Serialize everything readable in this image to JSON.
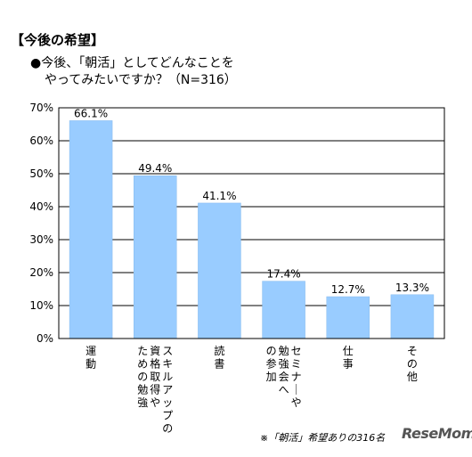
{
  "header": {
    "title": "【今後の希望】",
    "question_line1": "●今後、「朝活」としてどんなことを",
    "question_line2": "やってみたいですか？（N=316）"
  },
  "chart_data": {
    "type": "bar",
    "categories": [
      "運動",
      "資格取得やスキルアップのための勉強",
      "読書",
      "セミナーや勉強会への参加",
      "仕事",
      "その他"
    ],
    "category_lines": [
      [
        "運動"
      ],
      [
        "スキルアップの",
        "資格取得や",
        "ための勉強"
      ],
      [
        "読書"
      ],
      [
        "セミナーや",
        "勉強会へ",
        "の参加"
      ],
      [
        "仕事"
      ],
      [
        "その他"
      ]
    ],
    "values": [
      66.1,
      49.4,
      41.1,
      17.4,
      12.7,
      13.3
    ],
    "value_labels": [
      "66.1%",
      "49.4%",
      "41.1%",
      "17.4%",
      "12.7%",
      "13.3%"
    ],
    "ylim": [
      0,
      70
    ],
    "yticks": [
      "0%",
      "10%",
      "20%",
      "30%",
      "40%",
      "50%",
      "60%",
      "70%"
    ],
    "grid": true,
    "colors": {
      "bar": "#99ccff",
      "bar_stroke": "#88bbee",
      "grid": "#000000",
      "axis": "#000000"
    }
  },
  "footer": {
    "note": "※「朝活」希望ありの316名",
    "logo": "ReseMom"
  }
}
